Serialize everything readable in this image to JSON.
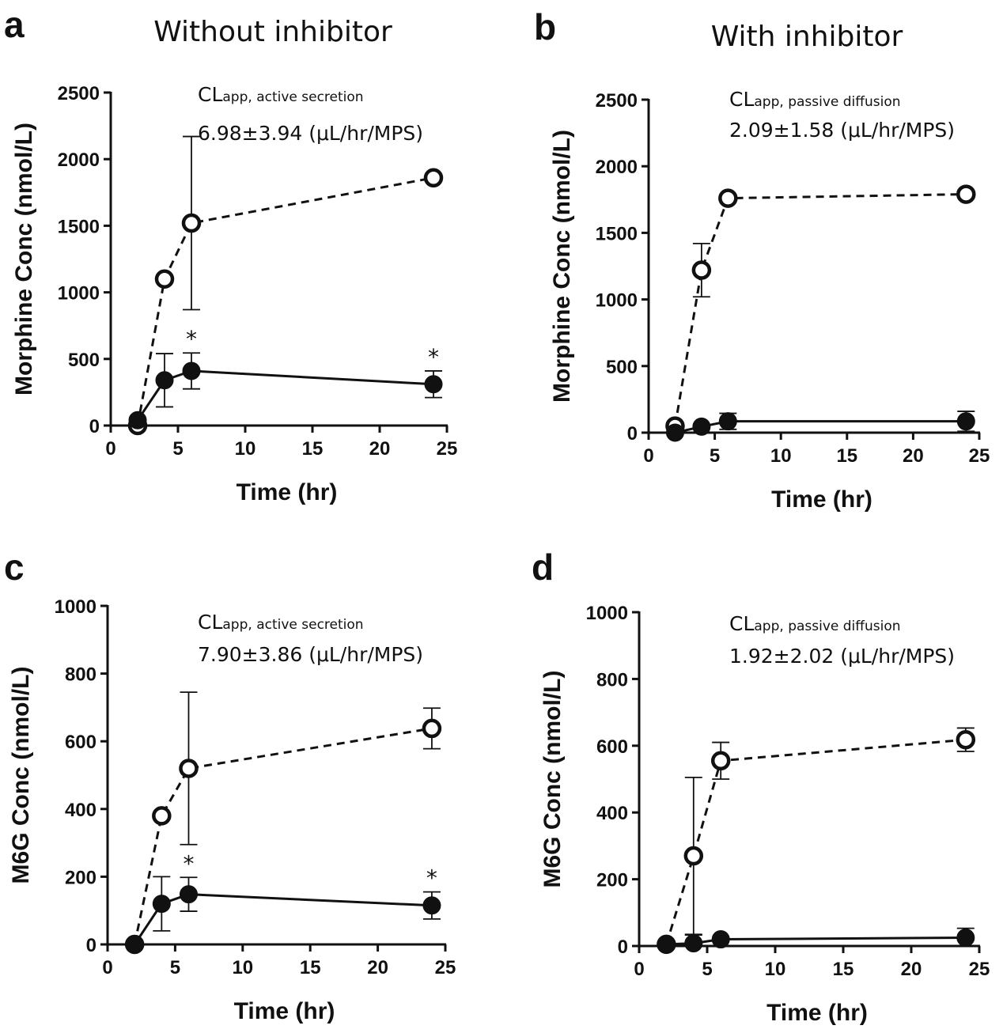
{
  "figure": {
    "titles": {
      "without": "Without inhibitor",
      "with": "With inhibitor"
    }
  },
  "chart_data": [
    {
      "panel": "a",
      "type": "line",
      "title": "Without inhibitor",
      "xlabel": "Time (hr)",
      "ylabel": "Morphine Conc (nmol/L)",
      "xlim": [
        0,
        25
      ],
      "ylim": [
        0,
        2500
      ],
      "xticks": [
        0,
        5,
        10,
        15,
        20,
        25
      ],
      "yticks": [
        0,
        500,
        1000,
        1500,
        2000,
        2500
      ],
      "annotation": {
        "main": "CL",
        "sub": "app, active secretion",
        "value": "6.98±3.94 (μL/hr/MPS)"
      },
      "series": [
        {
          "name": "open",
          "marker": "open-circle",
          "line": "dashed",
          "x": [
            2,
            4,
            6,
            24
          ],
          "y": [
            0,
            1100,
            1520,
            1860
          ],
          "err": [
            0,
            0,
            650,
            0
          ]
        },
        {
          "name": "filled",
          "marker": "filled-circle",
          "line": "solid",
          "x": [
            2,
            4,
            6,
            24
          ],
          "y": [
            40,
            340,
            410,
            310
          ],
          "err": [
            0,
            200,
            135,
            100
          ]
        }
      ],
      "significance": {
        "marker": "*",
        "x": [
          6,
          24
        ]
      }
    },
    {
      "panel": "b",
      "type": "line",
      "title": "With inhibitor",
      "xlabel": "Time (hr)",
      "ylabel": "Morphine Conc (nmol/L)",
      "xlim": [
        0,
        25
      ],
      "ylim": [
        0,
        2500
      ],
      "xticks": [
        0,
        5,
        10,
        15,
        20,
        25
      ],
      "yticks": [
        0,
        500,
        1000,
        1500,
        2000,
        2500
      ],
      "annotation": {
        "main": "CL",
        "sub": "app, passive diffusion",
        "value": "2.09±1.58 (μL/hr/MPS)"
      },
      "series": [
        {
          "name": "open",
          "marker": "open-circle",
          "line": "dashed",
          "x": [
            2,
            4,
            6,
            24
          ],
          "y": [
            50,
            1220,
            1760,
            1790
          ],
          "err": [
            0,
            200,
            0,
            0
          ]
        },
        {
          "name": "filled",
          "marker": "filled-circle",
          "line": "solid",
          "x": [
            2,
            4,
            6,
            24
          ],
          "y": [
            0,
            45,
            85,
            85
          ],
          "err": [
            0,
            0,
            60,
            75
          ]
        }
      ],
      "significance": {
        "marker": "*",
        "x": []
      }
    },
    {
      "panel": "c",
      "type": "line",
      "title": "",
      "xlabel": "Time (hr)",
      "ylabel": "M6G Conc (nmol/L)",
      "xlim": [
        0,
        25
      ],
      "ylim": [
        0,
        1000
      ],
      "xticks": [
        0,
        5,
        10,
        15,
        20,
        25
      ],
      "yticks": [
        0,
        200,
        400,
        600,
        800,
        1000
      ],
      "annotation": {
        "main": "CL",
        "sub": "app, active secretion",
        "value": "7.90±3.86 (μL/hr/MPS)"
      },
      "series": [
        {
          "name": "open",
          "marker": "open-circle",
          "line": "dashed",
          "x": [
            2,
            4,
            6,
            24
          ],
          "y": [
            0,
            380,
            520,
            638
          ],
          "err": [
            0,
            0,
            225,
            60
          ]
        },
        {
          "name": "filled",
          "marker": "filled-circle",
          "line": "solid",
          "x": [
            2,
            4,
            6,
            24
          ],
          "y": [
            0,
            120,
            148,
            115
          ],
          "err": [
            0,
            80,
            50,
            40
          ]
        }
      ],
      "significance": {
        "marker": "*",
        "x": [
          6,
          24
        ]
      }
    },
    {
      "panel": "d",
      "type": "line",
      "title": "",
      "xlabel": "Time (hr)",
      "ylabel": "M6G Conc (nmol/L)",
      "xlim": [
        0,
        25
      ],
      "ylim": [
        0,
        1000
      ],
      "xticks": [
        0,
        5,
        10,
        15,
        20,
        25
      ],
      "yticks": [
        0,
        200,
        400,
        600,
        800,
        1000
      ],
      "annotation": {
        "main": "CL",
        "sub": "app, passive diffusion",
        "value": "1.92±2.02 (μL/hr/MPS)"
      },
      "series": [
        {
          "name": "open",
          "marker": "open-circle",
          "line": "dashed",
          "x": [
            2,
            4,
            6,
            24
          ],
          "y": [
            5,
            270,
            555,
            618
          ],
          "err": [
            0,
            235,
            55,
            35
          ]
        },
        {
          "name": "filled",
          "marker": "filled-circle",
          "line": "solid",
          "x": [
            2,
            4,
            6,
            24
          ],
          "y": [
            5,
            8,
            20,
            25
          ],
          "err": [
            0,
            25,
            0,
            28
          ]
        }
      ],
      "significance": {
        "marker": "*",
        "x": []
      }
    }
  ]
}
